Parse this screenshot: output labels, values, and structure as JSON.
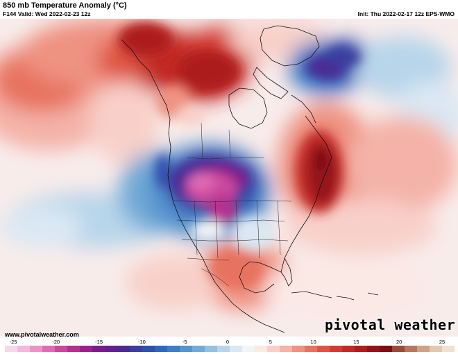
{
  "header": {
    "title": "850 mb Temperature Anomaly (°C)",
    "valid": "F144 Valid: Wed 2022-02-23 12z",
    "init": "Init: Thu 2022-02-17 12z EPS-WMO"
  },
  "footer": {
    "credit": "www.pivotalweather.com",
    "logo": "pivotal weather"
  },
  "colorbar": {
    "ticks": [
      "-25",
      "-20",
      "-15",
      "-10",
      "-5",
      "0",
      "5",
      "10",
      "15",
      "20",
      "25"
    ],
    "colors": [
      "#f6d7ec",
      "#f2b8dd",
      "#ec92c9",
      "#e06ab4",
      "#cb489f",
      "#b3318f",
      "#9a2287",
      "#7e1b8a",
      "#63208f",
      "#4b2a94",
      "#3b3e9f",
      "#3050ad",
      "#2f66bb",
      "#3c7dc6",
      "#5594cf",
      "#73aad7",
      "#95c0e0",
      "#b8d5ea",
      "#dae8f3",
      "#f2f4f7",
      "#fbe9e5",
      "#f8d0c9",
      "#f4b2a8",
      "#ee9282",
      "#e7725f",
      "#de5443",
      "#d23b31",
      "#c22a26",
      "#ad1d1f",
      "#95121a",
      "#7d0c16",
      "#9a4a3a",
      "#b6775e",
      "#cfa285",
      "#e3c7ad",
      "#f0e1cf"
    ]
  },
  "map": {
    "region": "North America",
    "colors": {
      "warm_strong": "#9e1419",
      "warm": "#d23b31",
      "warm_light": "#f4b2a8",
      "neutral": "#f6eeee",
      "cool_light": "#b8d5ea",
      "cool": "#3050ad",
      "cold": "#4b2a94",
      "very_cold": "#e06ab4"
    }
  }
}
